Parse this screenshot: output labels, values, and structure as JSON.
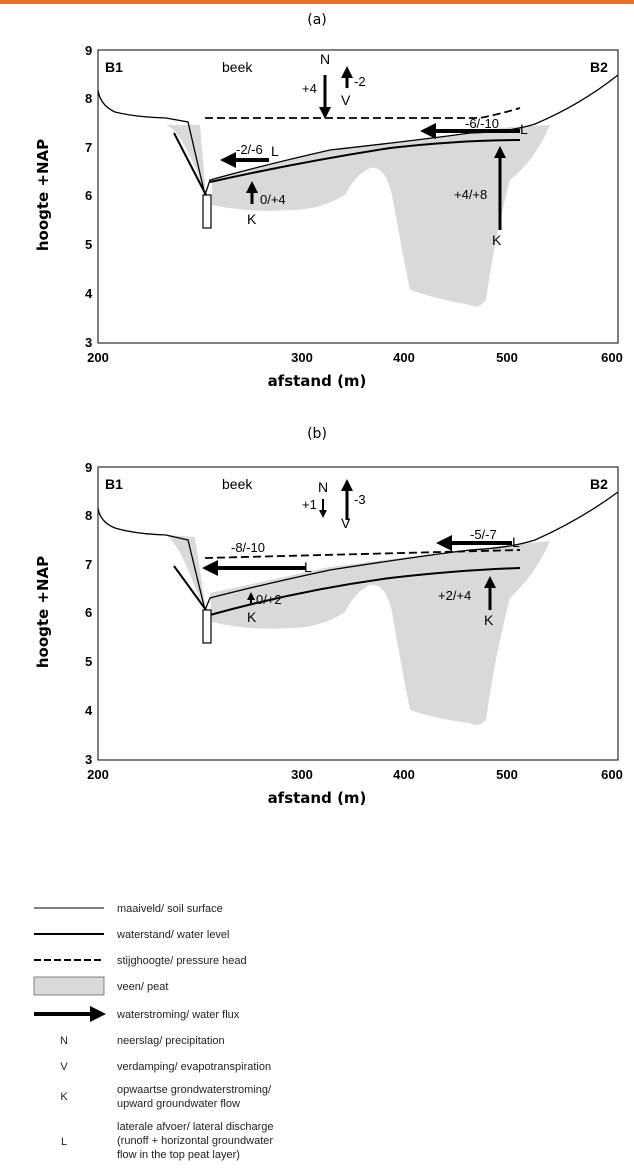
{
  "accent_color": "#e8702a",
  "peat_color": "#d9d9d9",
  "panels": [
    {
      "label": "(a)",
      "corner_left": "B1",
      "corner_right": "B2",
      "stream_label": "beek",
      "annotations": {
        "n_letter": "N",
        "n_value": "+4",
        "v_letter": "V",
        "v_value": "-2",
        "l_right_value": "-6/-10",
        "l_right_letter": "L",
        "l_left_value": "-2/-6",
        "l_left_letter": "L",
        "k_left_value": "0/+4",
        "k_left_letter": "K",
        "k_right_value": "+4/+8",
        "k_right_letter": "K"
      }
    },
    {
      "label": "(b)",
      "corner_left": "B1",
      "corner_right": "B2",
      "stream_label": "beek",
      "annotations": {
        "n_letter": "N",
        "n_value": "+1",
        "v_letter": "V",
        "v_value": "-3",
        "l_right_value": "-5/-7",
        "l_right_letter": "L",
        "l_left_value": "-8/-10",
        "l_left_letter": "L",
        "k_left_value": "0/+2",
        "k_left_letter": "K",
        "k_right_value": "+2/+4",
        "k_right_letter": "K"
      }
    }
  ],
  "axes": {
    "xlabel": "afstand (m)",
    "ylabel": "hoogte +NAP",
    "x_ticks": [
      "200",
      "300",
      "400",
      "500",
      "600"
    ],
    "y_ticks": [
      "3",
      "4",
      "5",
      "6",
      "7",
      "8",
      "9"
    ]
  },
  "legend": [
    {
      "symbol": "thin-line",
      "text": "maaiveld/ soil surface"
    },
    {
      "symbol": "thick-line",
      "text": "waterstand/ water level"
    },
    {
      "symbol": "dashed-line",
      "text": "stijghoogte/ pressure head"
    },
    {
      "symbol": "gray-box",
      "text": "veen/ peat"
    },
    {
      "symbol": "arrow",
      "text": "waterstroming/ water flux"
    },
    {
      "symbol": "N",
      "text": "neerslag/ precipitation"
    },
    {
      "symbol": "V",
      "text": "verdamping/ evapotranspiration"
    },
    {
      "symbol": "K",
      "text": "opwaartse grondwaterstroming/",
      "text2": "upward groundwater flow"
    },
    {
      "symbol": "L",
      "text": "laterale afvoer/ lateral discharge",
      "text2": "(runoff + horizontal groundwater",
      "text3": "flow in the top peat layer)"
    }
  ]
}
